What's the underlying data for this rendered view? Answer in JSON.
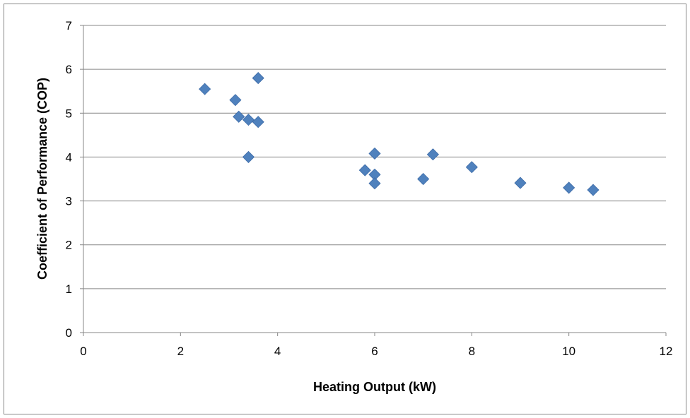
{
  "chart_data": {
    "type": "scatter",
    "title": "",
    "xlabel": "Heating Output (kW)",
    "ylabel": "Coefficient of Performance (COP)",
    "xlim": [
      0,
      12
    ],
    "ylim": [
      0,
      7
    ],
    "x_ticks": [
      "0",
      "2",
      "4",
      "6",
      "8",
      "10",
      "12"
    ],
    "y_ticks": [
      "0",
      "1",
      "2",
      "3",
      "4",
      "5",
      "6",
      "7"
    ],
    "grid": "horizontal",
    "legend": "none",
    "marker": "diamond",
    "marker_color": "#4F81BD",
    "series": [
      {
        "x": [
          2.5,
          3.6,
          3.13,
          3.2,
          3.4,
          3.6,
          3.4,
          5.8,
          6.0,
          6.0,
          6.0,
          7.0,
          7.2,
          8.0,
          9.0,
          10.0,
          10.5
        ],
        "y": [
          5.55,
          5.8,
          5.3,
          4.92,
          4.85,
          4.8,
          4.0,
          3.7,
          4.08,
          3.6,
          3.4,
          3.5,
          4.06,
          3.77,
          3.41,
          3.3,
          3.25
        ]
      }
    ]
  }
}
